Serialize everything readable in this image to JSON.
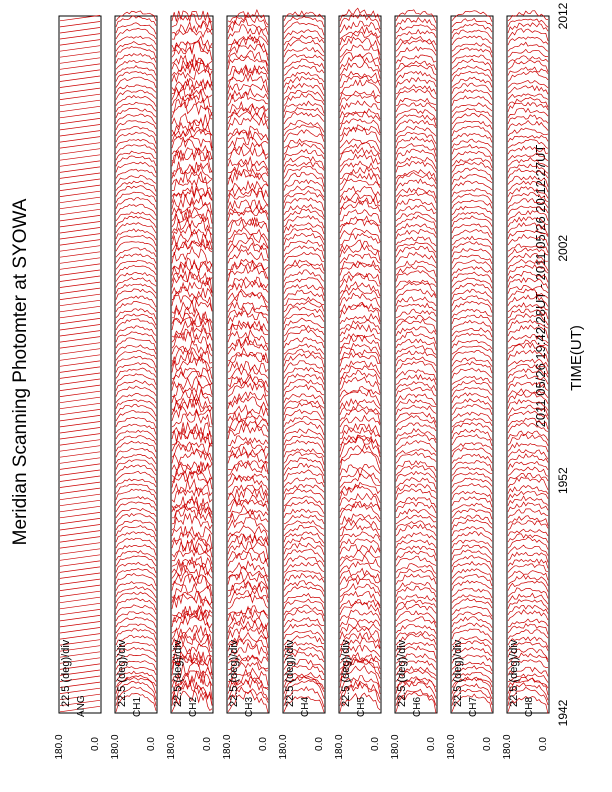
{
  "title": "Meridian Scanning Photomter at SYOWA",
  "time_range": "2011 05/26 19:42:28UT - 2011 05/26 20:12:27UT",
  "xlabel": "TIME(UT)",
  "scale_label": "22.5 (deg)/div",
  "colors": {
    "trace": "#cc0000",
    "frame": "#000000",
    "background": "#ffffff"
  },
  "chart_data": {
    "type": "line",
    "title": "Meridian Scanning Photomter at SYOWA",
    "subtitle": "2011 05/26 19:42:28UT - 2011 05/26 20:12:27UT",
    "xlabel": "TIME(UT)",
    "x_ticks": [
      "1942",
      "1952",
      "2002",
      "2012"
    ],
    "x_tick_values": [
      0,
      10,
      20,
      30
    ],
    "xlim": [
      0,
      30
    ],
    "scan_count": 115,
    "panels": [
      {
        "name": "ANG",
        "y_ticks": [
          "180.0",
          "0.0"
        ],
        "ylim": [
          0,
          180
        ],
        "scale": "22.5 (deg)/div",
        "kind": "angle",
        "spikes": []
      },
      {
        "name": "CH1",
        "y_ticks": [
          "180.0",
          "0.0"
        ],
        "ylim": [
          0,
          180
        ],
        "scale": "22.5 (deg)/div",
        "kind": "channel",
        "noise": 0.12,
        "base_amp": 0.55,
        "spikes": [
          {
            "t": 0.6,
            "amp": 1.0
          }
        ]
      },
      {
        "name": "CH2",
        "y_ticks": [
          "180.0",
          "0.0"
        ],
        "ylim": [
          0,
          180
        ],
        "scale": "22.5 (deg)/div",
        "kind": "channel",
        "noise": 0.55,
        "base_amp": 0.45,
        "spikes": [
          {
            "t": 0.6,
            "amp": 1.0
          },
          {
            "t": 1.6,
            "amp": 0.9
          }
        ]
      },
      {
        "name": "CH3",
        "y_ticks": [
          "180.0",
          "0.0"
        ],
        "ylim": [
          0,
          180
        ],
        "scale": "22.5 (deg)/div",
        "kind": "channel",
        "noise": 0.4,
        "base_amp": 0.5,
        "spikes": [
          {
            "t": 0.6,
            "amp": 1.0
          }
        ]
      },
      {
        "name": "CH4",
        "y_ticks": [
          "180.0",
          "0.0"
        ],
        "ylim": [
          0,
          180
        ],
        "scale": "22.5 (deg)/div",
        "kind": "channel",
        "noise": 0.2,
        "base_amp": 0.55,
        "spikes": [
          {
            "t": 0.6,
            "amp": 1.0
          }
        ]
      },
      {
        "name": "CH5",
        "y_ticks": [
          "180.0",
          "0.0"
        ],
        "ylim": [
          0,
          180
        ],
        "scale": "22.5 (deg)/div",
        "kind": "channel",
        "noise": 0.3,
        "base_amp": 0.55,
        "spikes": [
          {
            "t": 0.5,
            "amp": 1.0
          },
          {
            "t": 1.4,
            "amp": 1.0
          },
          {
            "t": 11.0,
            "amp": 0.8
          }
        ]
      },
      {
        "name": "CH6",
        "y_ticks": [
          "180.0",
          "0.0"
        ],
        "ylim": [
          0,
          180
        ],
        "scale": "22.5 (deg)/div",
        "kind": "channel",
        "noise": 0.2,
        "base_amp": 0.5,
        "spikes": [
          {
            "t": 0.6,
            "amp": 1.0
          }
        ]
      },
      {
        "name": "CH7",
        "y_ticks": [
          "180.0",
          "0.0"
        ],
        "ylim": [
          0,
          180
        ],
        "scale": "22.5 (deg)/div",
        "kind": "channel",
        "noise": 0.15,
        "base_amp": 0.5,
        "spikes": [
          {
            "t": 0.6,
            "amp": 0.9
          }
        ]
      },
      {
        "name": "CH8",
        "y_ticks": [
          "180.0",
          "0.0"
        ],
        "ylim": [
          0,
          180
        ],
        "scale": "22.5 (deg)/div",
        "kind": "channel",
        "noise": 0.2,
        "base_amp": 0.45,
        "spikes": [
          {
            "t": 0.5,
            "amp": 1.0
          }
        ]
      }
    ]
  }
}
